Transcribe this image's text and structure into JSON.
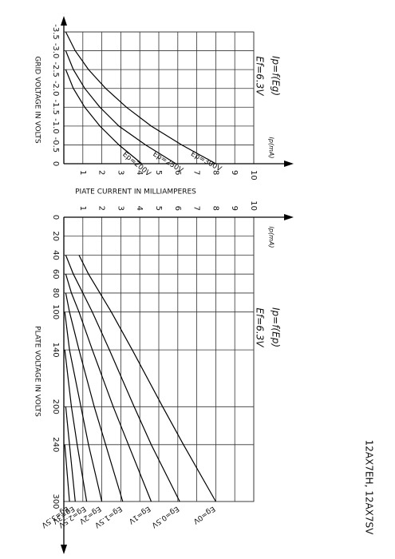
{
  "device": "12AX7EH, 12AX7SV",
  "current_axis_title": "PIATE CURRENT IN MILLIAMPERES",
  "chart_data": [
    {
      "type": "line",
      "title": "Ip=f(Eg)",
      "subtitle": "Ef=6.3V",
      "x_label": "GRID VOLTAGE IN VOLTS",
      "y_label": "Ip(mA)",
      "x": [
        -3.5,
        -3,
        -2.5,
        -2,
        -1.5,
        -1,
        -0.5,
        0
      ],
      "series": [
        {
          "name": "Ep=200V",
          "color": "#000000",
          "values": [
            null,
            null,
            0.1,
            0.5,
            1.1,
            1.9,
            2.9,
            4.1
          ]
        },
        {
          "name": "Ep=250V",
          "color": "#000000",
          "values": [
            null,
            0.1,
            0.5,
            1.1,
            1.9,
            2.9,
            4.3,
            5.9
          ]
        },
        {
          "name": "Ep=300V",
          "color": "#000000",
          "values": [
            0.1,
            0.6,
            1.3,
            2.2,
            3.3,
            4.6,
            6.2,
            8.0
          ]
        }
      ],
      "xlim": [
        -3.5,
        0
      ],
      "xticks": [
        -3.5,
        {
          "value": -3,
          "label": "-3.0"
        },
        -2.5,
        {
          "value": -2,
          "label": "-2.0"
        },
        -1.5,
        {
          "value": -1,
          "label": "-1.0"
        },
        -0.5,
        0
      ],
      "ylim": [
        0,
        10
      ],
      "yticks": [
        1,
        2,
        3,
        4,
        5,
        6,
        7,
        8,
        9,
        10
      ],
      "grid": true
    },
    {
      "type": "line",
      "title": "Ip=f(Ep)",
      "subtitle": "Ef=6.3V",
      "x_label": "PLATE VOLTAGE IN VOLTS",
      "y_label": "Ip(mA)",
      "x": [
        40,
        60,
        80,
        100,
        140,
        200,
        240,
        300
      ],
      "series": [
        {
          "name": "Eg=0V",
          "color": "#000000",
          "values": [
            0.8,
            1.3,
            1.9,
            2.5,
            3.6,
            5.2,
            6.3,
            8.0
          ]
        },
        {
          "name": "Eg=0.5V",
          "color": "#000000",
          "values": [
            0.1,
            0.5,
            1.0,
            1.5,
            2.4,
            3.7,
            4.6,
            6.1
          ]
        },
        {
          "name": "Eg=1V",
          "color": "#000000",
          "values": [
            null,
            0.1,
            0.4,
            0.8,
            1.5,
            2.6,
            3.4,
            4.6
          ]
        },
        {
          "name": "Eg=1.5V",
          "color": "#000000",
          "values": [
            null,
            null,
            0.1,
            0.3,
            0.8,
            1.6,
            2.2,
            3.1
          ]
        },
        {
          "name": "Eg=2V",
          "color": "#000000",
          "values": [
            null,
            null,
            null,
            0.05,
            0.3,
            0.9,
            1.3,
            2.0
          ]
        },
        {
          "name": "Eg=2.5V",
          "color": "#000000",
          "values": [
            null,
            null,
            null,
            null,
            0.05,
            0.4,
            0.7,
            1.2
          ]
        },
        {
          "name": "Eg=3V",
          "color": "#000000",
          "values": [
            null,
            null,
            null,
            null,
            null,
            0.1,
            0.3,
            0.6
          ]
        },
        {
          "name": "Eg=3.5V",
          "color": "#000000",
          "values": [
            null,
            null,
            null,
            null,
            null,
            null,
            0.05,
            0.3
          ]
        }
      ],
      "xlim": [
        0,
        300
      ],
      "xticks": [
        0,
        20,
        40,
        60,
        80,
        100,
        140,
        200,
        240,
        300
      ],
      "ylim": [
        0,
        10
      ],
      "yticks": [
        1,
        2,
        3,
        4,
        5,
        6,
        7,
        8,
        9,
        10
      ],
      "grid": true
    }
  ]
}
